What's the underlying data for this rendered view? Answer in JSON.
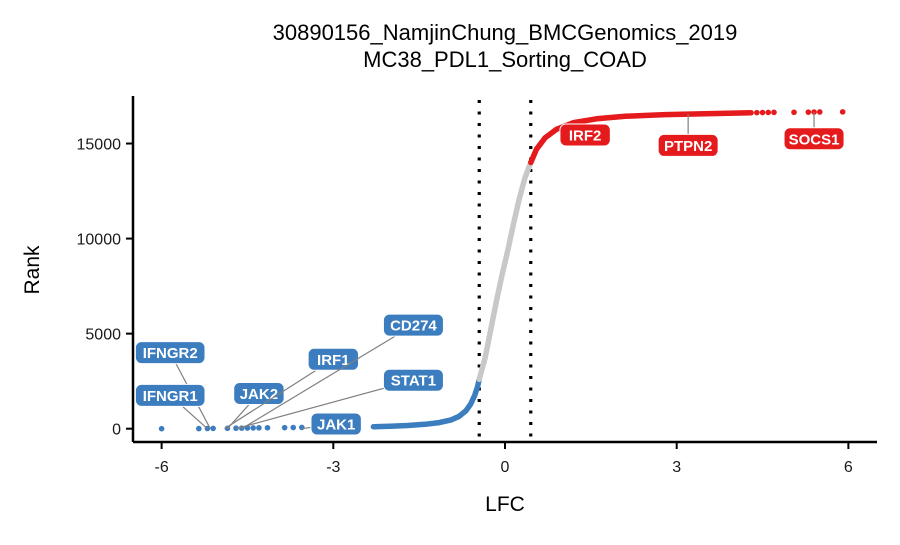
{
  "chart_data": {
    "type": "scatter",
    "title": [
      "30890156_NamjinChung_BMCGenomics_2019",
      "MC38_PDL1_Sorting_COAD"
    ],
    "xlabel": "LFC",
    "ylabel": "Rank",
    "xlim": [
      -6.5,
      6.5
    ],
    "ylim": [
      -700,
      17500
    ],
    "xticks": [
      -6,
      -3,
      0,
      3,
      6
    ],
    "xtick_labels": [
      "-6",
      "-3",
      "0",
      "3",
      "6"
    ],
    "yticks": [
      0,
      5000,
      10000,
      15000
    ],
    "ytick_labels": [
      "0",
      "5000",
      "10000",
      "15000"
    ],
    "thresholds": [
      -0.45,
      0.45
    ],
    "threshold_style": "dotted vertical lines",
    "grid": false,
    "legend": "none",
    "colors": {
      "negative": "#3B7DBF",
      "neutral": "#C8C8C8",
      "positive": "#E41A1C"
    },
    "series": [
      {
        "group": "negative",
        "points": [
          {
            "x": -6.0,
            "y": 0
          },
          {
            "x": -5.35,
            "y": 5
          },
          {
            "x": -5.2,
            "y": 10
          },
          {
            "x": -5.1,
            "y": 15
          },
          {
            "x": -4.85,
            "y": 20
          },
          {
            "x": -4.7,
            "y": 25
          },
          {
            "x": -4.6,
            "y": 30
          },
          {
            "x": -4.5,
            "y": 35
          },
          {
            "x": -4.4,
            "y": 40
          },
          {
            "x": -4.3,
            "y": 45
          },
          {
            "x": -4.15,
            "y": 50
          },
          {
            "x": -3.85,
            "y": 55
          },
          {
            "x": -3.7,
            "y": 60
          },
          {
            "x": -3.55,
            "y": 65
          },
          {
            "x": -3.05,
            "y": 70
          },
          {
            "x": -2.85,
            "y": 75
          },
          {
            "x": -2.7,
            "y": 80
          }
        ],
        "curve": [
          {
            "x": -2.3,
            "y": 100
          },
          {
            "x": -2.0,
            "y": 130
          },
          {
            "x": -1.7,
            "y": 170
          },
          {
            "x": -1.4,
            "y": 230
          },
          {
            "x": -1.15,
            "y": 320
          },
          {
            "x": -0.95,
            "y": 450
          },
          {
            "x": -0.8,
            "y": 650
          },
          {
            "x": -0.68,
            "y": 950
          },
          {
            "x": -0.6,
            "y": 1300
          },
          {
            "x": -0.53,
            "y": 1750
          },
          {
            "x": -0.48,
            "y": 2200
          },
          {
            "x": -0.45,
            "y": 2600
          }
        ]
      },
      {
        "group": "neutral",
        "curve": [
          {
            "x": -0.45,
            "y": 2600
          },
          {
            "x": -0.35,
            "y": 3700
          },
          {
            "x": -0.25,
            "y": 5200
          },
          {
            "x": -0.15,
            "y": 6700
          },
          {
            "x": -0.05,
            "y": 8100
          },
          {
            "x": 0.05,
            "y": 9400
          },
          {
            "x": 0.15,
            "y": 10800
          },
          {
            "x": 0.25,
            "y": 12100
          },
          {
            "x": 0.35,
            "y": 13200
          },
          {
            "x": 0.45,
            "y": 14000
          }
        ]
      },
      {
        "group": "positive",
        "curve": [
          {
            "x": 0.45,
            "y": 14000
          },
          {
            "x": 0.55,
            "y": 14700
          },
          {
            "x": 0.7,
            "y": 15300
          },
          {
            "x": 0.9,
            "y": 15750
          },
          {
            "x": 1.2,
            "y": 16100
          },
          {
            "x": 1.6,
            "y": 16300
          },
          {
            "x": 2.1,
            "y": 16430
          },
          {
            "x": 2.8,
            "y": 16520
          },
          {
            "x": 3.5,
            "y": 16570
          },
          {
            "x": 4.0,
            "y": 16600
          },
          {
            "x": 4.3,
            "y": 16620
          }
        ],
        "points": [
          {
            "x": 4.4,
            "y": 16625
          },
          {
            "x": 4.5,
            "y": 16630
          },
          {
            "x": 4.6,
            "y": 16635
          },
          {
            "x": 4.7,
            "y": 16640
          },
          {
            "x": 5.05,
            "y": 16645
          },
          {
            "x": 5.3,
            "y": 16650
          },
          {
            "x": 5.4,
            "y": 16655
          },
          {
            "x": 5.5,
            "y": 16660
          },
          {
            "x": 5.9,
            "y": 16665
          }
        ]
      }
    ],
    "annotations": [
      {
        "text": "IFNGR2",
        "group": "negative",
        "x": -5.15,
        "y": 0,
        "label_x": -5.85,
        "label_y": 4000
      },
      {
        "text": "IFNGR1",
        "group": "negative",
        "x": -5.2,
        "y": 0,
        "label_x": -5.85,
        "label_y": 1750
      },
      {
        "text": "JAK2",
        "group": "negative",
        "x": -4.85,
        "y": 0,
        "label_x": -4.3,
        "label_y": 1850
      },
      {
        "text": "IRF1",
        "group": "negative",
        "x": -4.9,
        "y": 0,
        "label_x": -3.0,
        "label_y": 3650
      },
      {
        "text": "CD274",
        "group": "negative",
        "x": -4.6,
        "y": 0,
        "label_x": -1.6,
        "label_y": 5450
      },
      {
        "text": "STAT1",
        "group": "negative",
        "x": -4.7,
        "y": 0,
        "label_x": -1.6,
        "label_y": 2550
      },
      {
        "text": "JAK1",
        "group": "negative",
        "x": -3.55,
        "y": 0,
        "label_x": -2.95,
        "label_y": 250
      },
      {
        "text": "IRF2",
        "group": "positive",
        "x": 1.4,
        "y": 16300,
        "label_x": 1.4,
        "label_y": 15450
      },
      {
        "text": "PTPN2",
        "group": "positive",
        "x": 3.2,
        "y": 16560,
        "label_x": 3.2,
        "label_y": 14900
      },
      {
        "text": "SOCS1",
        "group": "positive",
        "x": 5.4,
        "y": 16650,
        "label_x": 5.4,
        "label_y": 15250
      }
    ]
  }
}
